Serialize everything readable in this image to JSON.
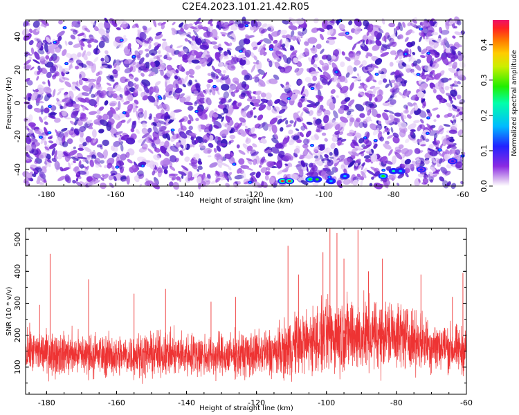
{
  "chart_data": [
    {
      "type": "heatmap",
      "title": "C2E4.2023.101.21.42.R05",
      "xlabel": "Height of straight line (km)",
      "ylabel": "Frequency (Hz)",
      "xlim": [
        -186,
        -60
      ],
      "ylim": [
        -50,
        50
      ],
      "x_ticks": [
        -180,
        -160,
        -140,
        -120,
        -100,
        -80,
        -60
      ],
      "y_ticks": [
        -40,
        -20,
        0,
        20,
        40
      ],
      "colorbar": {
        "label": "Normalized spectral amplitude",
        "range": [
          0,
          0.47
        ],
        "ticks": [
          0.0,
          0.1,
          0.2,
          0.3,
          0.4
        ]
      },
      "hot_spots": [
        {
          "x": -112,
          "y": -47,
          "level": 0.45
        },
        {
          "x": -110,
          "y": -47,
          "level": 0.45
        },
        {
          "x": -104,
          "y": -46,
          "level": 0.3
        },
        {
          "x": -102,
          "y": -46,
          "level": 0.28
        },
        {
          "x": -98,
          "y": -47,
          "level": 0.22
        },
        {
          "x": -94,
          "y": -44,
          "level": 0.2
        },
        {
          "x": -83,
          "y": -44,
          "level": 0.3
        },
        {
          "x": -80,
          "y": -41,
          "level": 0.25
        },
        {
          "x": -78,
          "y": -41,
          "level": 0.2
        },
        {
          "x": -72,
          "y": -40,
          "level": 0.15
        },
        {
          "x": -63,
          "y": -35,
          "level": 0.12
        }
      ],
      "grid": false
    },
    {
      "type": "line",
      "xlabel": "Height of straight line (km)",
      "ylabel": "SNR (10 * v/v)",
      "xlim": [
        -186,
        -60
      ],
      "ylim": [
        15,
        535
      ],
      "x_ticks": [
        -180,
        -160,
        -140,
        -120,
        -100,
        -80,
        -60
      ],
      "y_ticks": [
        100,
        200,
        300,
        400,
        500
      ],
      "series_color": "#ee3333",
      "envelope": {
        "x": [
          -186,
          -180,
          -170,
          -160,
          -150,
          -140,
          -130,
          -120,
          -112,
          -110,
          -105,
          -100,
          -95,
          -90,
          -85,
          -80,
          -75,
          -70,
          -65,
          -60
        ],
        "baseline": [
          150,
          145,
          140,
          135,
          140,
          140,
          135,
          140,
          150,
          165,
          180,
          195,
          205,
          195,
          200,
          205,
          185,
          170,
          160,
          150
        ],
        "spread": [
          90,
          90,
          90,
          85,
          90,
          90,
          90,
          95,
          110,
          130,
          140,
          150,
          160,
          150,
          145,
          140,
          120,
          110,
          100,
          95
        ]
      },
      "peaks": [
        {
          "x": -182,
          "y": 295
        },
        {
          "x": -179,
          "y": 455
        },
        {
          "x": -168,
          "y": 375
        },
        {
          "x": -155,
          "y": 330
        },
        {
          "x": -146,
          "y": 345
        },
        {
          "x": -133,
          "y": 305
        },
        {
          "x": -126,
          "y": 320
        },
        {
          "x": -111,
          "y": 480
        },
        {
          "x": -108,
          "y": 390
        },
        {
          "x": -101,
          "y": 460
        },
        {
          "x": -99,
          "y": 535
        },
        {
          "x": -97,
          "y": 520
        },
        {
          "x": -95,
          "y": 440
        },
        {
          "x": -91,
          "y": 530
        },
        {
          "x": -88,
          "y": 400
        },
        {
          "x": -84,
          "y": 440
        },
        {
          "x": -73,
          "y": 390
        },
        {
          "x": -64,
          "y": 320
        },
        {
          "x": -61,
          "y": 395
        }
      ],
      "grid": false
    }
  ]
}
